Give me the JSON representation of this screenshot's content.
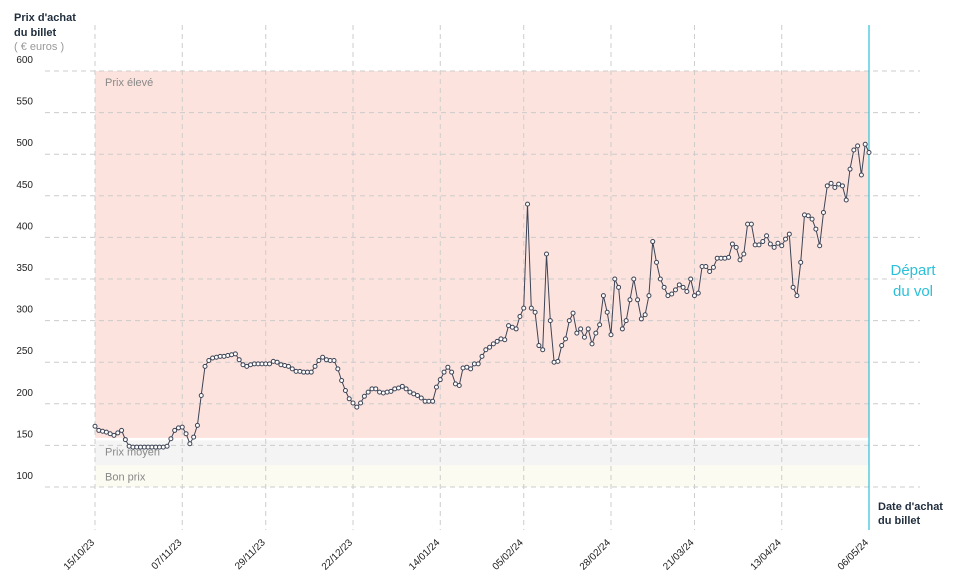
{
  "chart_data": {
    "type": "line",
    "y_label": [
      "Prix d'achat",
      "du billet"
    ],
    "y_unit": "( € euros )",
    "x_label": [
      "Date d'achat",
      "du billet"
    ],
    "categories": [
      "15/10/23",
      null,
      null,
      null,
      null,
      null,
      null,
      null,
      null,
      null,
      null,
      null,
      null,
      null,
      null,
      null,
      null,
      null,
      null,
      null,
      null,
      null,
      null,
      "07/11/23",
      null,
      null,
      null,
      null,
      null,
      null,
      null,
      null,
      null,
      null,
      null,
      null,
      null,
      null,
      null,
      null,
      null,
      null,
      null,
      null,
      null,
      "29/11/23",
      null,
      null,
      null,
      null,
      null,
      null,
      null,
      null,
      null,
      null,
      null,
      null,
      null,
      null,
      null,
      null,
      null,
      null,
      null,
      null,
      null,
      null,
      "22/12/23",
      null,
      null,
      null,
      null,
      null,
      null,
      null,
      null,
      null,
      null,
      null,
      null,
      null,
      null,
      null,
      null,
      null,
      null,
      null,
      null,
      null,
      null,
      "14/01/24",
      null,
      null,
      null,
      null,
      null,
      null,
      null,
      null,
      null,
      null,
      null,
      null,
      null,
      null,
      null,
      null,
      null,
      null,
      null,
      null,
      null,
      "05/02/24",
      null,
      null,
      null,
      null,
      null,
      null,
      null,
      null,
      null,
      null,
      null,
      null,
      null,
      null,
      null,
      null,
      null,
      null,
      null,
      null,
      null,
      null,
      "28/02/24",
      null,
      null,
      null,
      null,
      null,
      null,
      null,
      null,
      null,
      null,
      null,
      null,
      null,
      null,
      null,
      null,
      null,
      null,
      null,
      null,
      null,
      "21/03/24",
      null,
      null,
      null,
      null,
      null,
      null,
      null,
      null,
      null,
      null,
      null,
      null,
      null,
      null,
      null,
      null,
      null,
      null,
      null,
      null,
      null,
      null,
      "13/04/24",
      null,
      null,
      null,
      null,
      null,
      null,
      null,
      null,
      null,
      null,
      null,
      null,
      null,
      null,
      null,
      null,
      null,
      null,
      null,
      null,
      null,
      null,
      "06/05/24"
    ],
    "values": [
      173,
      168,
      167,
      166,
      164,
      162,
      165,
      168,
      157,
      149,
      148,
      148,
      148,
      148,
      148,
      148,
      148,
      148,
      148,
      149,
      158,
      168,
      171,
      172,
      164,
      152,
      160,
      174,
      210,
      245,
      252,
      255,
      256,
      257,
      257,
      258,
      259,
      260,
      253,
      247,
      245,
      247,
      248,
      248,
      248,
      248,
      248,
      251,
      250,
      247,
      246,
      245,
      242,
      239,
      239,
      238,
      238,
      238,
      245,
      252,
      256,
      253,
      252,
      252,
      242,
      228,
      216,
      206,
      201,
      196,
      201,
      209,
      214,
      218,
      218,
      214,
      213,
      214,
      215,
      218,
      219,
      221,
      218,
      214,
      212,
      210,
      207,
      203,
      203,
      203,
      220,
      229,
      238,
      244,
      238,
      224,
      222,
      243,
      244,
      242,
      248,
      248,
      257,
      265,
      268,
      272,
      275,
      278,
      277,
      294,
      292,
      290,
      305,
      315,
      440,
      315,
      310,
      270,
      265,
      380,
      300,
      250,
      251,
      270,
      278,
      300,
      309,
      285,
      290,
      280,
      290,
      272,
      285,
      295,
      330,
      310,
      283,
      350,
      340,
      290,
      300,
      325,
      350,
      325,
      302,
      307,
      330,
      395,
      370,
      350,
      340,
      330,
      332,
      337,
      343,
      340,
      335,
      350,
      330,
      333,
      365,
      365,
      359,
      364,
      375,
      375,
      375,
      376,
      392,
      388,
      373,
      380,
      416,
      416,
      391,
      391,
      395,
      402,
      392,
      388,
      393,
      390,
      398,
      404,
      340,
      330,
      370,
      427,
      426,
      422,
      410,
      390,
      430,
      462,
      465,
      460,
      464,
      462,
      445,
      482,
      505,
      510,
      475,
      512,
      502
    ],
    "color": "#3d4456",
    "ylim": [
      100,
      600
    ],
    "yticks": [
      100,
      150,
      200,
      250,
      300,
      350,
      400,
      450,
      500,
      550,
      600
    ],
    "grid": true,
    "bands": [
      {
        "label": "Prix élevé",
        "from": 159,
        "to": 600,
        "color": "#fde3de"
      },
      {
        "label": "Prix moyen",
        "from": 126,
        "to": 156,
        "color": "#f4f4f4"
      },
      {
        "label": "Bon prix",
        "from": 100,
        "to": 126,
        "color": "#fbfbf1"
      }
    ],
    "annotation": {
      "label": [
        "Départ",
        "du vol"
      ],
      "color": "#2bc0d8"
    }
  }
}
